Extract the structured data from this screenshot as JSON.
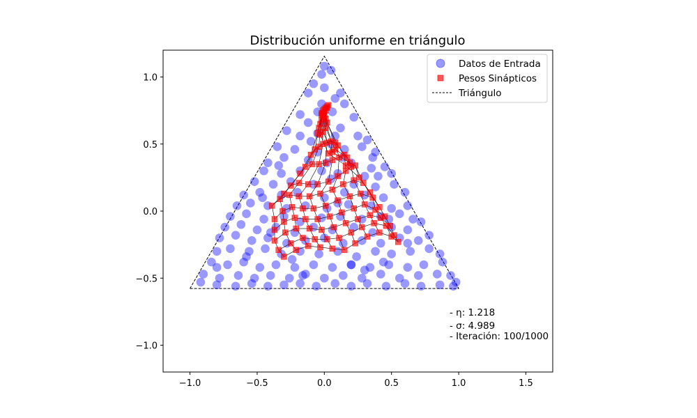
{
  "chart_data": {
    "type": "scatter",
    "title": "Distribución uniforme en triángulo",
    "xlabel": "",
    "ylabel": "",
    "xlim": [
      -1.2,
      1.7
    ],
    "ylim": [
      -1.2,
      1.2
    ],
    "xticks": [
      -1.0,
      -0.5,
      0.0,
      0.5,
      1.0,
      1.5
    ],
    "xtick_labels": [
      "−1.0",
      "−0.5",
      "0.0",
      "0.5",
      "1.0",
      "1.5"
    ],
    "yticks": [
      -1.0,
      -0.5,
      0.0,
      0.5,
      1.0
    ],
    "ytick_labels": [
      "−1.0",
      "−0.5",
      "0.0",
      "0.5",
      "1.0"
    ],
    "grid": false,
    "legend_position": "top-right",
    "colors": {
      "input": "#0000ff",
      "weights": "#ff0000",
      "triangle": "#000000"
    },
    "triangle": {
      "name": "Triángulo",
      "x": [
        -1.0,
        1.0,
        0.0,
        -1.0
      ],
      "y": [
        -0.577,
        -0.577,
        1.155,
        -0.577
      ]
    },
    "input_data": {
      "name": "Datos de Entrada",
      "points": [
        [
          0.0,
          1.08
        ],
        [
          0.05,
          1.05
        ],
        [
          -0.02,
          1.02
        ],
        [
          -0.12,
          0.88
        ],
        [
          0.12,
          0.88
        ],
        [
          0.0,
          0.92
        ],
        [
          -0.08,
          0.95
        ],
        [
          0.08,
          0.84
        ],
        [
          -0.02,
          0.8
        ],
        [
          0.15,
          0.8
        ],
        [
          0.06,
          0.74
        ],
        [
          -0.05,
          0.74
        ],
        [
          -0.18,
          0.72
        ],
        [
          -0.12,
          0.66
        ],
        [
          0.0,
          0.66
        ],
        [
          0.12,
          0.62
        ],
        [
          0.22,
          0.7
        ],
        [
          -0.05,
          0.58
        ],
        [
          0.08,
          0.56
        ],
        [
          0.25,
          0.56
        ],
        [
          -0.28,
          0.6
        ],
        [
          -0.18,
          0.56
        ],
        [
          0.32,
          0.53
        ],
        [
          0.05,
          0.5
        ],
        [
          -0.35,
          0.48
        ],
        [
          -0.22,
          0.46
        ],
        [
          -0.05,
          0.44
        ],
        [
          0.15,
          0.46
        ],
        [
          0.28,
          0.48
        ],
        [
          0.38,
          0.44
        ],
        [
          -0.42,
          0.36
        ],
        [
          -0.3,
          0.4
        ],
        [
          -0.12,
          0.38
        ],
        [
          0.02,
          0.36
        ],
        [
          0.2,
          0.36
        ],
        [
          0.35,
          0.32
        ],
        [
          0.45,
          0.33
        ],
        [
          -0.45,
          0.3
        ],
        [
          -0.32,
          0.28
        ],
        [
          -0.18,
          0.3
        ],
        [
          0.1,
          0.28
        ],
        [
          0.3,
          0.26
        ],
        [
          0.4,
          0.26
        ],
        [
          0.5,
          0.28
        ],
        [
          -0.52,
          0.22
        ],
        [
          -0.38,
          0.2
        ],
        [
          -0.25,
          0.22
        ],
        [
          -0.08,
          0.2
        ],
        [
          0.05,
          0.24
        ],
        [
          0.22,
          0.2
        ],
        [
          0.38,
          0.18
        ],
        [
          0.52,
          0.2
        ],
        [
          -0.6,
          0.12
        ],
        [
          -0.48,
          0.14
        ],
        [
          -0.32,
          0.12
        ],
        [
          -0.2,
          0.14
        ],
        [
          0.0,
          0.1
        ],
        [
          0.15,
          0.14
        ],
        [
          0.3,
          0.12
        ],
        [
          0.44,
          0.1
        ],
        [
          0.6,
          0.14
        ],
        [
          -0.65,
          0.04
        ],
        [
          -0.55,
          0.06
        ],
        [
          -0.42,
          0.04
        ],
        [
          -0.28,
          0.02
        ],
        [
          -0.14,
          0.04
        ],
        [
          0.02,
          0.02
        ],
        [
          0.18,
          0.05
        ],
        [
          0.35,
          0.04
        ],
        [
          0.5,
          0.02
        ],
        [
          0.62,
          0.04
        ],
        [
          -0.7,
          -0.04
        ],
        [
          -0.58,
          -0.02
        ],
        [
          -0.45,
          -0.06
        ],
        [
          -0.3,
          -0.04
        ],
        [
          -0.18,
          -0.08
        ],
        [
          -0.02,
          -0.05
        ],
        [
          0.12,
          -0.04
        ],
        [
          0.28,
          -0.06
        ],
        [
          0.42,
          -0.04
        ],
        [
          0.56,
          -0.02
        ],
        [
          0.66,
          -0.06
        ],
        [
          -0.74,
          -0.12
        ],
        [
          -0.62,
          -0.1
        ],
        [
          -0.5,
          -0.14
        ],
        [
          -0.36,
          -0.12
        ],
        [
          -0.22,
          -0.16
        ],
        [
          -0.08,
          -0.12
        ],
        [
          0.06,
          -0.14
        ],
        [
          0.22,
          -0.12
        ],
        [
          0.36,
          -0.16
        ],
        [
          0.5,
          -0.12
        ],
        [
          0.62,
          -0.14
        ],
        [
          0.72,
          -0.08
        ],
        [
          -0.78,
          -0.2
        ],
        [
          -0.66,
          -0.18
        ],
        [
          -0.54,
          -0.22
        ],
        [
          -0.42,
          -0.2
        ],
        [
          -0.28,
          -0.24
        ],
        [
          -0.14,
          -0.22
        ],
        [
          0.0,
          -0.2
        ],
        [
          0.14,
          -0.24
        ],
        [
          0.28,
          -0.22
        ],
        [
          0.42,
          -0.24
        ],
        [
          0.56,
          -0.2
        ],
        [
          0.7,
          -0.22
        ],
        [
          0.78,
          -0.18
        ],
        [
          -0.8,
          -0.3
        ],
        [
          -0.7,
          -0.28
        ],
        [
          -0.56,
          -0.3
        ],
        [
          -0.44,
          -0.28
        ],
        [
          -0.32,
          -0.32
        ],
        [
          -0.18,
          -0.3
        ],
        [
          -0.04,
          -0.32
        ],
        [
          0.1,
          -0.3
        ],
        [
          0.24,
          -0.34
        ],
        [
          0.38,
          -0.3
        ],
        [
          0.5,
          -0.32
        ],
        [
          0.64,
          -0.3
        ],
        [
          0.78,
          -0.28
        ],
        [
          0.86,
          -0.32
        ],
        [
          -0.84,
          -0.38
        ],
        [
          -0.72,
          -0.4
        ],
        [
          -0.6,
          -0.38
        ],
        [
          -0.48,
          -0.42
        ],
        [
          -0.36,
          -0.4
        ],
        [
          -0.22,
          -0.42
        ],
        [
          -0.08,
          -0.4
        ],
        [
          0.06,
          -0.42
        ],
        [
          0.2,
          -0.4
        ],
        [
          0.34,
          -0.42
        ],
        [
          0.48,
          -0.4
        ],
        [
          0.62,
          -0.42
        ],
        [
          0.74,
          -0.4
        ],
        [
          0.88,
          -0.38
        ],
        [
          -0.8,
          -0.42
        ],
        [
          -0.9,
          -0.47
        ],
        [
          -0.78,
          -0.5
        ],
        [
          -0.64,
          -0.48
        ],
        [
          -0.52,
          -0.5
        ],
        [
          -0.4,
          -0.48
        ],
        [
          -0.26,
          -0.5
        ],
        [
          -0.14,
          -0.47
        ],
        [
          0.0,
          -0.5
        ],
        [
          0.14,
          -0.48
        ],
        [
          0.28,
          -0.5
        ],
        [
          0.42,
          -0.47
        ],
        [
          0.56,
          -0.5
        ],
        [
          0.7,
          -0.48
        ],
        [
          0.84,
          -0.47
        ],
        [
          0.94,
          -0.48
        ],
        [
          -0.92,
          -0.53
        ],
        [
          -0.8,
          -0.55
        ],
        [
          -0.66,
          -0.56
        ],
        [
          -0.54,
          -0.54
        ],
        [
          -0.42,
          -0.56
        ],
        [
          -0.3,
          -0.55
        ],
        [
          -0.18,
          -0.54
        ],
        [
          -0.06,
          -0.56
        ],
        [
          0.08,
          -0.54
        ],
        [
          0.2,
          -0.56
        ],
        [
          0.32,
          -0.54
        ],
        [
          0.46,
          -0.56
        ],
        [
          0.6,
          -0.54
        ],
        [
          0.72,
          -0.56
        ],
        [
          0.86,
          -0.55
        ],
        [
          0.96,
          -0.56
        ],
        [
          0.98,
          -0.53
        ],
        [
          -0.02,
          0.3
        ],
        [
          -0.4,
          -0.16
        ],
        [
          0.2,
          -0.4
        ],
        [
          0.48,
          -0.06
        ],
        [
          -0.1,
          0.52
        ],
        [
          0.1,
          0.06
        ],
        [
          -0.24,
          -0.36
        ],
        [
          0.3,
          -0.44
        ],
        [
          -0.34,
          0.34
        ],
        [
          0.36,
          0.4
        ],
        [
          -0.58,
          -0.34
        ],
        [
          0.62,
          -0.24
        ],
        [
          -0.16,
          -0.48
        ],
        [
          0.14,
          0.4
        ],
        [
          -0.46,
          0.1
        ],
        [
          0.44,
          -0.38
        ]
      ]
    },
    "weights": {
      "name": "Pesos Sinápticos",
      "grid": [
        [
          [
            -0.3,
            -0.34
          ],
          [
            -0.21,
            -0.29
          ],
          [
            -0.12,
            -0.26
          ],
          [
            -0.03,
            -0.27
          ],
          [
            0.06,
            -0.28
          ],
          [
            0.15,
            -0.29
          ],
          [
            0.23,
            -0.24
          ],
          [
            0.32,
            -0.19
          ],
          [
            0.41,
            -0.16
          ],
          [
            0.5,
            -0.19
          ],
          [
            0.55,
            -0.23
          ]
        ],
        [
          [
            -0.34,
            -0.29
          ],
          [
            -0.25,
            -0.24
          ],
          [
            -0.16,
            -0.2
          ],
          [
            -0.07,
            -0.21
          ],
          [
            0.02,
            -0.21
          ],
          [
            0.11,
            -0.2
          ],
          [
            0.2,
            -0.16
          ],
          [
            0.28,
            -0.12
          ],
          [
            0.37,
            -0.09
          ],
          [
            0.46,
            -0.11
          ],
          [
            0.52,
            -0.18
          ]
        ],
        [
          [
            -0.37,
            -0.22
          ],
          [
            -0.29,
            -0.16
          ],
          [
            -0.21,
            -0.13
          ],
          [
            -0.11,
            -0.13
          ],
          [
            -0.02,
            -0.14
          ],
          [
            0.07,
            -0.12
          ],
          [
            0.16,
            -0.09
          ],
          [
            0.25,
            -0.06
          ],
          [
            0.34,
            -0.03
          ],
          [
            0.42,
            -0.05
          ],
          [
            0.49,
            -0.11
          ]
        ],
        [
          [
            -0.37,
            -0.14
          ],
          [
            -0.3,
            -0.08
          ],
          [
            -0.22,
            -0.05
          ],
          [
            -0.14,
            -0.06
          ],
          [
            -0.05,
            -0.06
          ],
          [
            0.04,
            -0.04
          ],
          [
            0.13,
            -0.01
          ],
          [
            0.22,
            0.02
          ],
          [
            0.3,
            0.05
          ],
          [
            0.38,
            0.01
          ],
          [
            0.45,
            -0.04
          ]
        ],
        [
          [
            -0.37,
            -0.06
          ],
          [
            -0.31,
            0.0
          ],
          [
            -0.24,
            0.03
          ],
          [
            -0.16,
            0.02
          ],
          [
            -0.08,
            0.02
          ],
          [
            0.01,
            0.04
          ],
          [
            0.1,
            0.08
          ],
          [
            0.19,
            0.11
          ],
          [
            0.27,
            0.13
          ],
          [
            0.36,
            0.1
          ],
          [
            0.41,
            0.03
          ]
        ],
        [
          [
            -0.39,
            0.04
          ],
          [
            -0.33,
            0.09
          ],
          [
            -0.26,
            0.12
          ],
          [
            -0.19,
            0.11
          ],
          [
            -0.11,
            0.11
          ],
          [
            -0.03,
            0.13
          ],
          [
            0.06,
            0.16
          ],
          [
            0.14,
            0.2
          ],
          [
            0.22,
            0.23
          ],
          [
            0.29,
            0.21
          ],
          [
            0.34,
            0.14
          ]
        ],
        [
          [
            -0.3,
            0.13
          ],
          [
            -0.25,
            0.19
          ],
          [
            -0.19,
            0.21
          ],
          [
            -0.12,
            0.2
          ],
          [
            -0.05,
            0.2
          ],
          [
            0.03,
            0.22
          ],
          [
            0.1,
            0.26
          ],
          [
            0.16,
            0.3
          ],
          [
            0.2,
            0.33
          ],
          [
            0.23,
            0.34
          ],
          [
            0.26,
            0.25
          ]
        ],
        [
          [
            -0.18,
            0.28
          ],
          [
            -0.14,
            0.33
          ],
          [
            -0.09,
            0.35
          ],
          [
            -0.04,
            0.35
          ],
          [
            0.01,
            0.36
          ],
          [
            0.06,
            0.38
          ],
          [
            0.11,
            0.4
          ],
          [
            0.15,
            0.42
          ],
          [
            0.17,
            0.4
          ],
          [
            0.19,
            0.36
          ],
          [
            0.16,
            0.34
          ]
        ],
        [
          [
            -0.1,
            0.42
          ],
          [
            -0.07,
            0.46
          ],
          [
            -0.04,
            0.48
          ],
          [
            -0.01,
            0.5
          ],
          [
            0.02,
            0.51
          ],
          [
            0.05,
            0.52
          ],
          [
            0.08,
            0.51
          ],
          [
            0.1,
            0.49
          ],
          [
            0.08,
            0.46
          ],
          [
            0.06,
            0.44
          ],
          [
            0.03,
            0.43
          ]
        ],
        [
          [
            -0.05,
            0.58
          ],
          [
            -0.04,
            0.62
          ],
          [
            -0.03,
            0.65
          ],
          [
            -0.02,
            0.68
          ],
          [
            -0.01,
            0.7
          ],
          [
            0.0,
            0.71
          ],
          [
            0.01,
            0.69
          ],
          [
            0.02,
            0.66
          ],
          [
            0.01,
            0.62
          ],
          [
            -0.01,
            0.59
          ],
          [
            -0.03,
            0.57
          ]
        ],
        [
          [
            -0.02,
            0.73
          ],
          [
            -0.01,
            0.75
          ],
          [
            0.0,
            0.76
          ],
          [
            0.01,
            0.77
          ],
          [
            0.02,
            0.78
          ],
          [
            0.03,
            0.79
          ],
          [
            0.02,
            0.77
          ],
          [
            0.01,
            0.75
          ],
          [
            0.0,
            0.74
          ],
          [
            -0.01,
            0.73
          ],
          [
            -0.02,
            0.72
          ]
        ]
      ]
    }
  },
  "annotations": {
    "eta": "- η: 1.218",
    "sigma": "- σ: 4.989",
    "iteration": "- Iteración: 100/1000"
  },
  "legend": {
    "input_label": "Datos de Entrada",
    "weights_label": "Pesos Sinápticos",
    "triangle_label": "Triángulo"
  }
}
